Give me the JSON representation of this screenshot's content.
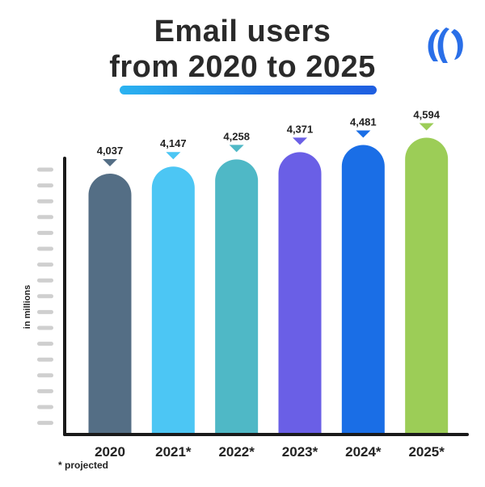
{
  "title": {
    "line1": "Email users",
    "line2": "from 2020 to 2025"
  },
  "footnote": "* projected",
  "colors": {
    "underline_start": "#2bb3f0",
    "underline_end": "#1f5ee0",
    "axis": "#1a1a1a",
    "tick": "#cfcfcf",
    "logo": "#2a6fe8"
  },
  "logo": {
    "icon": "brand-logo-icon"
  },
  "chart_data": {
    "type": "bar",
    "title": "Email users from 2020 to 2025",
    "xlabel": "",
    "ylabel": "in millions",
    "categories": [
      "2020",
      "2021*",
      "2022*",
      "2023*",
      "2024*",
      "2025*"
    ],
    "values": [
      4037,
      4147,
      4258,
      4371,
      4481,
      4594
    ],
    "value_labels": [
      "4,037",
      "4,147",
      "4,258",
      "4,371",
      "4,481",
      "4,594"
    ],
    "colors": [
      "#546e85",
      "#4cc6f4",
      "#4fb8c6",
      "#6a5fe6",
      "#1a6ee6",
      "#9ccd57"
    ],
    "ylim": [
      0,
      4850
    ],
    "grid": false,
    "legend": "none",
    "note": "* projected"
  }
}
